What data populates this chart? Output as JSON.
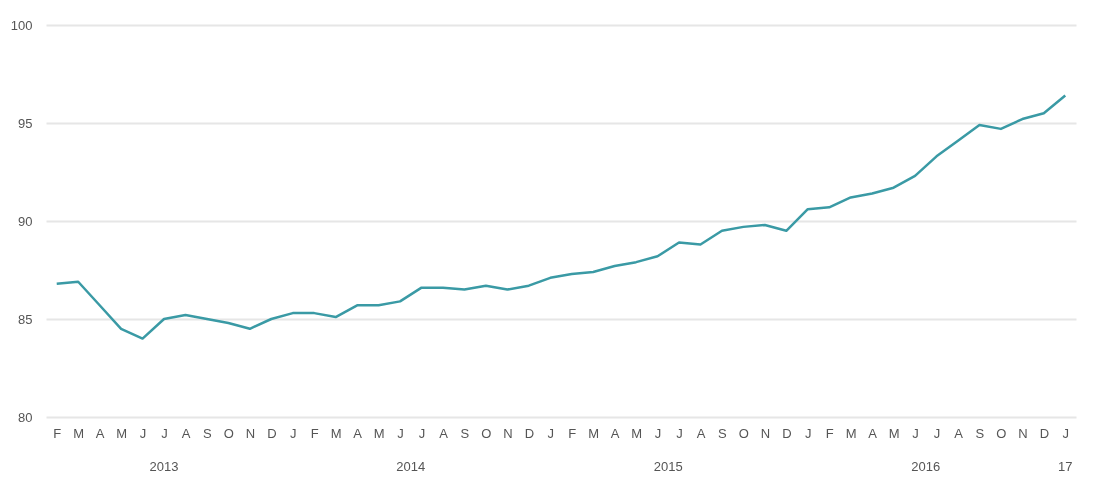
{
  "chart_data": {
    "type": "line",
    "categories": [
      "F",
      "M",
      "A",
      "M",
      "J",
      "J",
      "A",
      "S",
      "O",
      "N",
      "D",
      "J",
      "F",
      "M",
      "A",
      "M",
      "J",
      "J",
      "A",
      "S",
      "O",
      "N",
      "D",
      "J",
      "F",
      "M",
      "A",
      "M",
      "J",
      "J",
      "A",
      "S",
      "O",
      "N",
      "D",
      "J",
      "F",
      "M",
      "A",
      "M",
      "J",
      "J",
      "A",
      "S",
      "O",
      "N",
      "D",
      "J"
    ],
    "series": [
      {
        "color": "#3a9aa5",
        "values": [
          86.8,
          86.9,
          85.7,
          84.5,
          84.0,
          85.0,
          85.2,
          85.0,
          84.8,
          84.5,
          85.0,
          85.3,
          85.3,
          85.1,
          85.7,
          85.7,
          85.9,
          86.6,
          86.6,
          86.5,
          86.7,
          86.5,
          86.7,
          87.1,
          87.3,
          87.4,
          87.7,
          87.9,
          88.2,
          88.9,
          88.8,
          89.5,
          89.7,
          89.8,
          89.5,
          90.6,
          90.7,
          91.2,
          91.4,
          91.7,
          92.3,
          93.3,
          94.1,
          94.9,
          94.7,
          95.2,
          95.5,
          96.4
        ]
      }
    ],
    "ylim": [
      80,
      100
    ],
    "yticks": [
      80,
      85,
      90,
      95,
      100
    ],
    "grid": "y",
    "legend": false,
    "marker": "none",
    "line_style": "solid",
    "annotations": [
      "2013",
      "2014",
      "2015",
      "2016",
      "17"
    ]
  }
}
